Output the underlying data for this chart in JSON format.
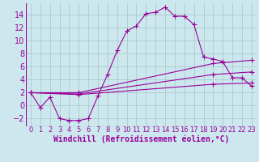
{
  "xlabel": "Windchill (Refroidissement éolien,°C)",
  "background_color": "#cce8ee",
  "grid_color": "#aacccc",
  "line_color": "#990099",
  "xlim": [
    -0.5,
    23.5
  ],
  "ylim": [
    -3.2,
    15.8
  ],
  "xticks": [
    0,
    1,
    2,
    3,
    4,
    5,
    6,
    7,
    8,
    9,
    10,
    11,
    12,
    13,
    14,
    15,
    16,
    17,
    18,
    19,
    20,
    21,
    22,
    23
  ],
  "yticks": [
    -2,
    0,
    2,
    4,
    6,
    8,
    10,
    12,
    14
  ],
  "series1_x": [
    0,
    1,
    2,
    3,
    4,
    5,
    6,
    7,
    8,
    9,
    10,
    11,
    12,
    13,
    14,
    15,
    16,
    17,
    18,
    19,
    20,
    21,
    22,
    23
  ],
  "series1_y": [
    2.0,
    -0.3,
    1.3,
    -2.0,
    -2.3,
    -2.3,
    -2.0,
    1.5,
    4.8,
    8.5,
    11.5,
    12.3,
    14.2,
    14.4,
    15.2,
    13.8,
    13.8,
    12.5,
    7.5,
    7.2,
    6.8,
    4.3,
    4.3,
    3.0
  ],
  "series2_x": [
    0,
    5,
    19,
    23
  ],
  "series2_y": [
    2.0,
    1.7,
    3.3,
    3.5
  ],
  "series3_x": [
    0,
    5,
    19,
    23
  ],
  "series3_y": [
    2.0,
    2.0,
    6.5,
    7.0
  ],
  "series4_x": [
    0,
    5,
    19,
    23
  ],
  "series4_y": [
    2.0,
    1.8,
    4.8,
    5.2
  ],
  "font_size_xlabel": 7,
  "font_size_yticks": 7,
  "font_size_xticks": 6,
  "marker_size": 3
}
